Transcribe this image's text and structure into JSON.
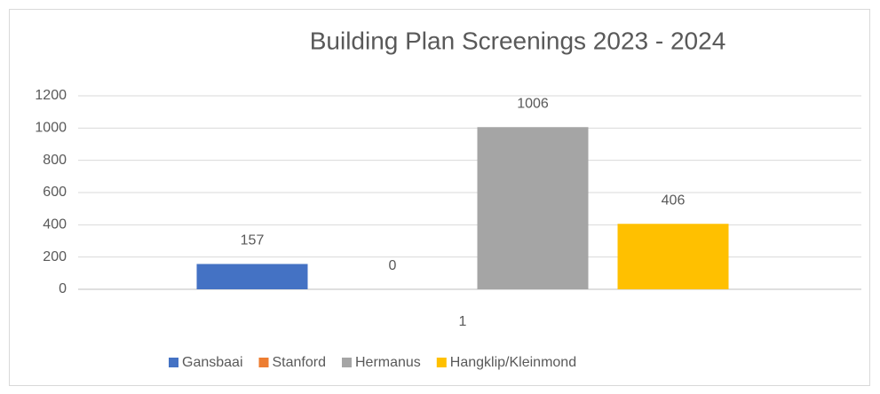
{
  "chart_data": {
    "type": "bar",
    "title": "Building Plan Screenings 2023 - 2024",
    "categories": [
      "1"
    ],
    "series": [
      {
        "name": "Gansbaai",
        "color": "#4472c4",
        "values": [
          157
        ]
      },
      {
        "name": "Stanford",
        "color": "#ed7d31",
        "values": [
          0
        ]
      },
      {
        "name": "Hermanus",
        "color": "#a5a5a5",
        "values": [
          1006
        ]
      },
      {
        "name": "Hangklip/Kleinmond",
        "color": "#ffc000",
        "values": [
          406
        ]
      }
    ],
    "ylim": [
      0,
      1200
    ],
    "yticks": [
      0,
      200,
      400,
      600,
      800,
      1000,
      1200
    ],
    "grid": true,
    "legend": "bottom"
  }
}
